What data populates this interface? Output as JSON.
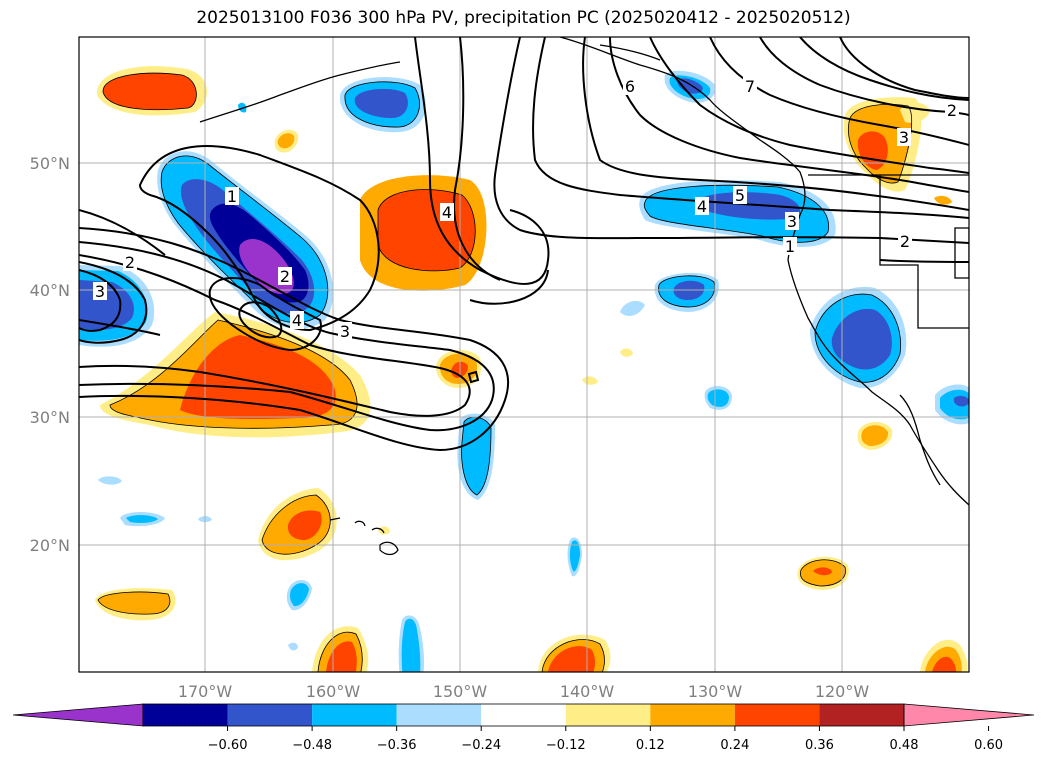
{
  "title": "2025013100 F036 300 hPa PV, precipitation PC (2025020412 - 2025020512)",
  "map": {
    "lat_labels": [
      "50°N",
      "40°N",
      "30°N",
      "20°N"
    ],
    "lon_labels": [
      "170°W",
      "160°W",
      "150°W",
      "140°W",
      "130°W",
      "120°W"
    ],
    "gridlines": true
  },
  "colorbar": {
    "colors": [
      "#9933cc",
      "#000099",
      "#3355cc",
      "#00bbff",
      "#aaddff",
      "#ffffff",
      "#ffee88",
      "#ffaa00",
      "#ff4400",
      "#b22222",
      "#ff88aa"
    ],
    "tick_labels": [
      "−0.60",
      "−0.48",
      "−0.36",
      "−0.24",
      "−0.12",
      "0.12",
      "0.24",
      "0.36",
      "0.48",
      "0.60"
    ],
    "extend": "both"
  },
  "contour_labels": [
    "1",
    "2",
    "3",
    "4",
    "5",
    "6",
    "7",
    "2",
    "3",
    "4",
    "3",
    "2",
    "1",
    "2",
    "3",
    "4"
  ]
}
